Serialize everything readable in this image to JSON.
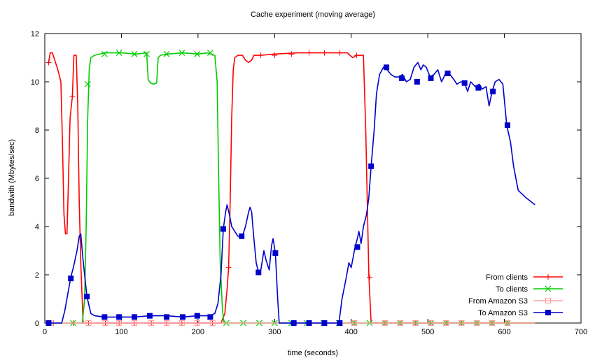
{
  "chart_data": {
    "type": "line",
    "title": "Cache experiment (moving average)",
    "xlabel": "time (seconds)",
    "ylabel": "bandwith (Mbytes/sec)",
    "xlim": [
      0,
      700
    ],
    "ylim": [
      0,
      12
    ],
    "xticks": [
      0,
      100,
      200,
      300,
      400,
      500,
      600,
      700
    ],
    "yticks": [
      0,
      2,
      4,
      6,
      8,
      10,
      12
    ],
    "grid": false,
    "legend_position": "bottom-right",
    "series": [
      {
        "name": "From clients",
        "color": "#ff0000",
        "marker": "plus",
        "line": [
          [
            5,
            10.8
          ],
          [
            7,
            11.2
          ],
          [
            10,
            11.2
          ],
          [
            13,
            10.9
          ],
          [
            17,
            10.5
          ],
          [
            21,
            10.0
          ],
          [
            23,
            7.5
          ],
          [
            25,
            4.5
          ],
          [
            27,
            3.7
          ],
          [
            29,
            3.7
          ],
          [
            31,
            6.0
          ],
          [
            33,
            8.5
          ],
          [
            36,
            9.4
          ],
          [
            38,
            11.1
          ],
          [
            41,
            11.1
          ],
          [
            43,
            9.0
          ],
          [
            45,
            5.0
          ],
          [
            47,
            2.5
          ],
          [
            50,
            0
          ],
          [
            230,
            0
          ],
          [
            235,
            0.4
          ],
          [
            238,
            1.4
          ],
          [
            240,
            2.3
          ],
          [
            242,
            5.0
          ],
          [
            244,
            8.5
          ],
          [
            246,
            10.5
          ],
          [
            248,
            11.0
          ],
          [
            252,
            11.1
          ],
          [
            258,
            11.1
          ],
          [
            262,
            10.9
          ],
          [
            266,
            10.8
          ],
          [
            270,
            10.9
          ],
          [
            273,
            11.1
          ],
          [
            282,
            11.1
          ],
          [
            300,
            11.15
          ],
          [
            330,
            11.2
          ],
          [
            360,
            11.2
          ],
          [
            380,
            11.2
          ],
          [
            395,
            11.2
          ],
          [
            402,
            11.0
          ],
          [
            407,
            11.1
          ],
          [
            416,
            11.1
          ],
          [
            419,
            8.0
          ],
          [
            421,
            5.0
          ],
          [
            423,
            2.0
          ],
          [
            426,
            0
          ],
          [
            640,
            0
          ]
        ],
        "markers": [
          [
            5,
            10.8
          ],
          [
            36,
            9.4
          ],
          [
            240,
            2.3
          ],
          [
            282,
            11.1
          ],
          [
            300,
            11.1
          ],
          [
            322,
            11.15
          ],
          [
            345,
            11.2
          ],
          [
            365,
            11.2
          ],
          [
            385,
            11.2
          ],
          [
            407,
            11.1
          ],
          [
            424,
            1.9
          ]
        ],
        "markers_zero": [
          11,
          37,
          57,
          79,
          97,
          117,
          139,
          159,
          179,
          199,
          219,
          325,
          345,
          365,
          385,
          404,
          444,
          464,
          484,
          504,
          524,
          544,
          564,
          584,
          604
        ]
      },
      {
        "name": "To clients",
        "color": "#00cc00",
        "marker": "x",
        "line": [
          [
            5,
            0
          ],
          [
            49,
            0
          ],
          [
            52,
            1.0
          ],
          [
            54,
            4.0
          ],
          [
            56,
            8.5
          ],
          [
            58,
            10.5
          ],
          [
            60,
            11.0
          ],
          [
            65,
            11.1
          ],
          [
            78,
            11.2
          ],
          [
            100,
            11.2
          ],
          [
            120,
            11.15
          ],
          [
            133,
            11.2
          ],
          [
            135,
            10.1
          ],
          [
            138,
            9.95
          ],
          [
            142,
            9.9
          ],
          [
            146,
            9.95
          ],
          [
            148,
            11.0
          ],
          [
            151,
            11.1
          ],
          [
            160,
            11.15
          ],
          [
            180,
            11.2
          ],
          [
            200,
            11.15
          ],
          [
            212,
            11.2
          ],
          [
            222,
            11.1
          ],
          [
            225,
            10.0
          ],
          [
            227,
            6.0
          ],
          [
            229,
            2.5
          ],
          [
            232,
            0.5
          ],
          [
            234,
            0
          ],
          [
            640,
            0
          ]
        ],
        "markers": [
          [
            56,
            9.9
          ],
          [
            78,
            11.15
          ],
          [
            97,
            11.2
          ],
          [
            117,
            11.15
          ],
          [
            133,
            11.15
          ],
          [
            159,
            11.15
          ],
          [
            179,
            11.2
          ],
          [
            199,
            11.15
          ],
          [
            216,
            11.2
          ]
        ],
        "markers_zero": [
          37,
          237,
          259,
          280,
          300,
          322,
          342,
          364,
          384,
          404,
          424,
          444,
          464,
          484,
          504,
          524,
          544,
          564,
          584,
          604
        ]
      },
      {
        "name": "From Amazon S3",
        "color": "#ffa0a0",
        "marker": "square-open",
        "line": [
          [
            5,
            0
          ],
          [
            640,
            0
          ]
        ],
        "markers": [],
        "markers_zero": [
          57,
          79,
          97,
          117,
          139,
          159,
          179,
          199,
          219,
          325,
          345,
          365,
          385,
          404,
          444,
          464,
          484,
          504,
          524,
          544,
          564,
          584,
          604
        ]
      },
      {
        "name": "To Amazon S3",
        "color": "#0000cc",
        "marker": "square-filled",
        "line": [
          [
            5,
            0
          ],
          [
            22,
            0
          ],
          [
            26,
            0.5
          ],
          [
            30,
            1.2
          ],
          [
            34,
            1.9
          ],
          [
            38,
            2.4
          ],
          [
            42,
            3.0
          ],
          [
            45,
            3.6
          ],
          [
            47,
            3.7
          ],
          [
            50,
            2.6
          ],
          [
            55,
            1.1
          ],
          [
            60,
            0.4
          ],
          [
            65,
            0.3
          ],
          [
            78,
            0.25
          ],
          [
            97,
            0.25
          ],
          [
            117,
            0.25
          ],
          [
            137,
            0.3
          ],
          [
            159,
            0.3
          ],
          [
            180,
            0.25
          ],
          [
            199,
            0.3
          ],
          [
            216,
            0.3
          ],
          [
            222,
            0.4
          ],
          [
            226,
            0.8
          ],
          [
            230,
            2.0
          ],
          [
            233,
            3.9
          ],
          [
            236,
            4.6
          ],
          [
            238,
            4.9
          ],
          [
            241,
            4.5
          ],
          [
            244,
            4.0
          ],
          [
            248,
            3.8
          ],
          [
            252,
            3.6
          ],
          [
            258,
            3.6
          ],
          [
            262,
            4.0
          ],
          [
            266,
            4.6
          ],
          [
            268,
            4.8
          ],
          [
            270,
            4.6
          ],
          [
            273,
            3.5
          ],
          [
            276,
            2.5
          ],
          [
            279,
            2.1
          ],
          [
            282,
            2.2
          ],
          [
            286,
            3.0
          ],
          [
            289,
            2.6
          ],
          [
            293,
            2.2
          ],
          [
            296,
            3.2
          ],
          [
            298,
            3.5
          ],
          [
            301,
            2.9
          ],
          [
            304,
            1.0
          ],
          [
            306,
            0
          ],
          [
            384,
            0
          ],
          [
            388,
            1.0
          ],
          [
            393,
            1.8
          ],
          [
            397,
            2.5
          ],
          [
            400,
            2.3
          ],
          [
            403,
            2.8
          ],
          [
            405,
            3.15
          ],
          [
            408,
            3.5
          ],
          [
            410,
            3.8
          ],
          [
            413,
            3.3
          ],
          [
            416,
            4.0
          ],
          [
            420,
            4.5
          ],
          [
            423,
            5.2
          ],
          [
            426,
            6.5
          ],
          [
            430,
            8.0
          ],
          [
            433,
            9.5
          ],
          [
            437,
            10.3
          ],
          [
            442,
            10.6
          ],
          [
            447,
            10.5
          ],
          [
            452,
            10.3
          ],
          [
            457,
            10.2
          ],
          [
            462,
            10.2
          ],
          [
            467,
            10.3
          ],
          [
            472,
            10.0
          ],
          [
            477,
            10.1
          ],
          [
            482,
            10.6
          ],
          [
            487,
            10.8
          ],
          [
            491,
            10.5
          ],
          [
            494,
            10.7
          ],
          [
            498,
            10.6
          ],
          [
            503,
            10.2
          ],
          [
            508,
            10.3
          ],
          [
            513,
            10.5
          ],
          [
            518,
            10.0
          ],
          [
            524,
            10.4
          ],
          [
            529,
            10.3
          ],
          [
            534,
            10.1
          ],
          [
            538,
            9.9
          ],
          [
            543,
            10.0
          ],
          [
            548,
            9.95
          ],
          [
            552,
            9.6
          ],
          [
            556,
            10.0
          ],
          [
            562,
            9.8
          ],
          [
            567,
            9.9
          ],
          [
            571,
            9.7
          ],
          [
            576,
            9.8
          ],
          [
            580,
            9.0
          ],
          [
            584,
            9.6
          ],
          [
            588,
            10.0
          ],
          [
            593,
            10.1
          ],
          [
            598,
            9.9
          ],
          [
            603,
            8.2
          ],
          [
            608,
            7.5
          ],
          [
            612,
            6.5
          ],
          [
            618,
            5.5
          ],
          [
            628,
            5.2
          ],
          [
            640,
            4.9
          ]
        ],
        "markers": [
          [
            5,
            0
          ],
          [
            34,
            1.85
          ],
          [
            55,
            1.1
          ],
          [
            78,
            0.25
          ],
          [
            97,
            0.25
          ],
          [
            117,
            0.25
          ],
          [
            137,
            0.3
          ],
          [
            159,
            0.25
          ],
          [
            180,
            0.25
          ],
          [
            199,
            0.3
          ],
          [
            216,
            0.25
          ],
          [
            233,
            3.9
          ],
          [
            257,
            3.6
          ],
          [
            279,
            2.1
          ],
          [
            301,
            2.9
          ],
          [
            325,
            0
          ],
          [
            345,
            0
          ],
          [
            365,
            0
          ],
          [
            385,
            0
          ],
          [
            408,
            3.15
          ],
          [
            426,
            6.5
          ],
          [
            446,
            10.6
          ],
          [
            466,
            10.15
          ],
          [
            486,
            10.0
          ],
          [
            504,
            10.15
          ],
          [
            526,
            10.35
          ],
          [
            548,
            9.95
          ],
          [
            566,
            9.75
          ],
          [
            585,
            9.6
          ],
          [
            604,
            8.2
          ]
        ],
        "markers_zero": []
      }
    ]
  }
}
